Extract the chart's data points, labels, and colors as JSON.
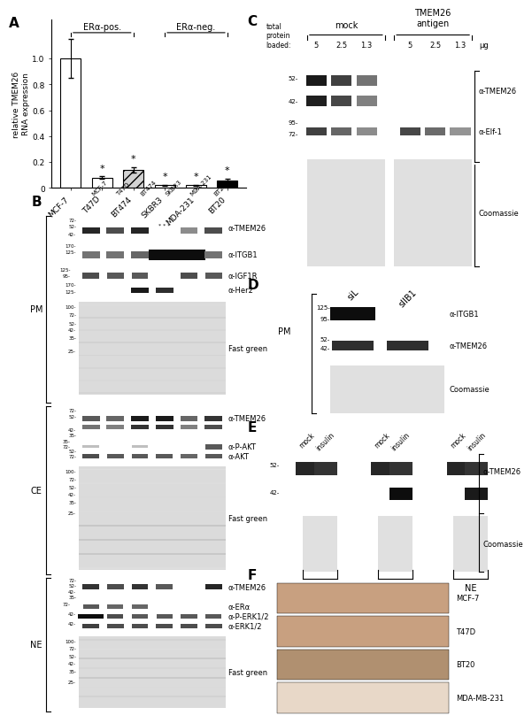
{
  "panel_A": {
    "categories": [
      "MCF-7",
      "T47D",
      "BT474",
      "SKBR3",
      "MDA-231",
      "BT20"
    ],
    "values": [
      1.0,
      0.08,
      0.14,
      0.02,
      0.02,
      0.06
    ],
    "errors": [
      0.15,
      0.01,
      0.02,
      0.005,
      0.005,
      0.01
    ],
    "bar_colors": [
      "white",
      "white",
      "lightgray",
      "white",
      "white",
      "black"
    ],
    "bar_hatches": [
      "",
      "",
      "///",
      "",
      "",
      ""
    ],
    "bar_edgecolors": [
      "black",
      "black",
      "black",
      "black",
      "black",
      "black"
    ],
    "ylabel": "relative TMEM26\nRNA expression",
    "ylim": [
      0,
      1.3
    ],
    "yticks": [
      0.0,
      0.2,
      0.4,
      0.6,
      0.8,
      1.0
    ],
    "er_pos_label": "ERα-pos.",
    "er_neg_label": "ERα-neg."
  },
  "panel_B": {
    "samples": [
      "MCF-7",
      "T47D",
      "BT474",
      "SKBR3",
      "MDA-231",
      "BT20"
    ],
    "pm_labels": [
      "α-TMEM26",
      "α-ITGB1",
      "α-IGF1R",
      "α-Her2",
      "Fast green"
    ],
    "ce_labels": [
      "α-TMEM26",
      "α-P-AKT",
      "α-AKT",
      "Fast green"
    ],
    "ne_labels": [
      "α-TMEM26",
      "α-ERα",
      "α-P-ERK1/2",
      "α-ERK1/2",
      "Fast green"
    ]
  },
  "ihc_panels": [
    "MCF-7",
    "T47D",
    "BT20",
    "MDA-MB-231"
  ],
  "ihc_colors": [
    "#c8a080",
    "#c8a080",
    "#b09070",
    "#e8d8c8"
  ]
}
